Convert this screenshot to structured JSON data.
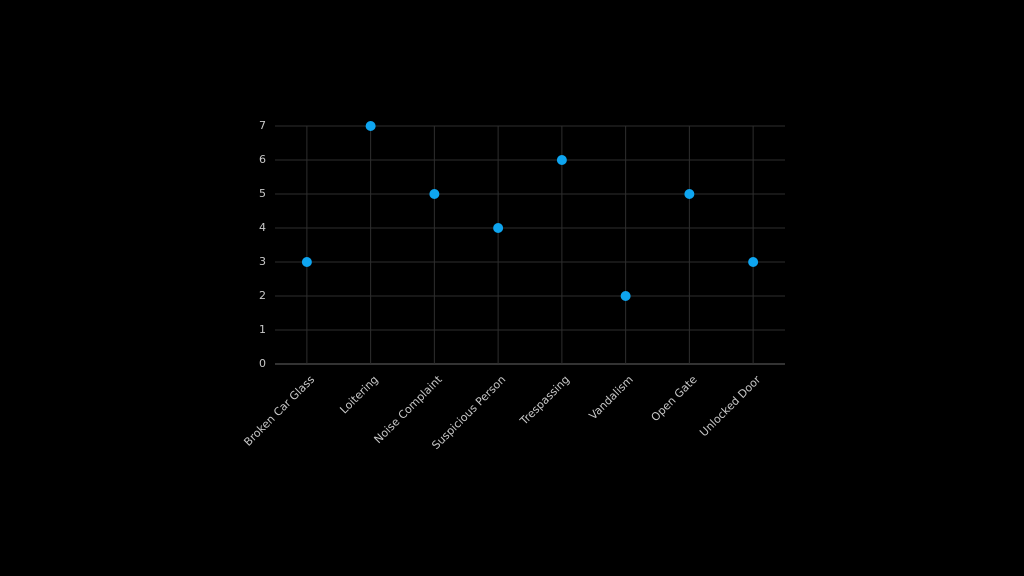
{
  "chart_data": {
    "type": "scatter",
    "categories": [
      "Broken Car Glass",
      "Loitering",
      "Noise Complaint",
      "Suspicious Person",
      "Trespassing",
      "Vandalism",
      "Open Gate",
      "Unlocked Door"
    ],
    "values": [
      3,
      7,
      5,
      4,
      6,
      2,
      5,
      3
    ],
    "color": "#0ea5f0",
    "ylim": [
      0,
      7
    ],
    "yticks": [
      0,
      1,
      2,
      3,
      4,
      5,
      6,
      7
    ],
    "grid": true
  }
}
